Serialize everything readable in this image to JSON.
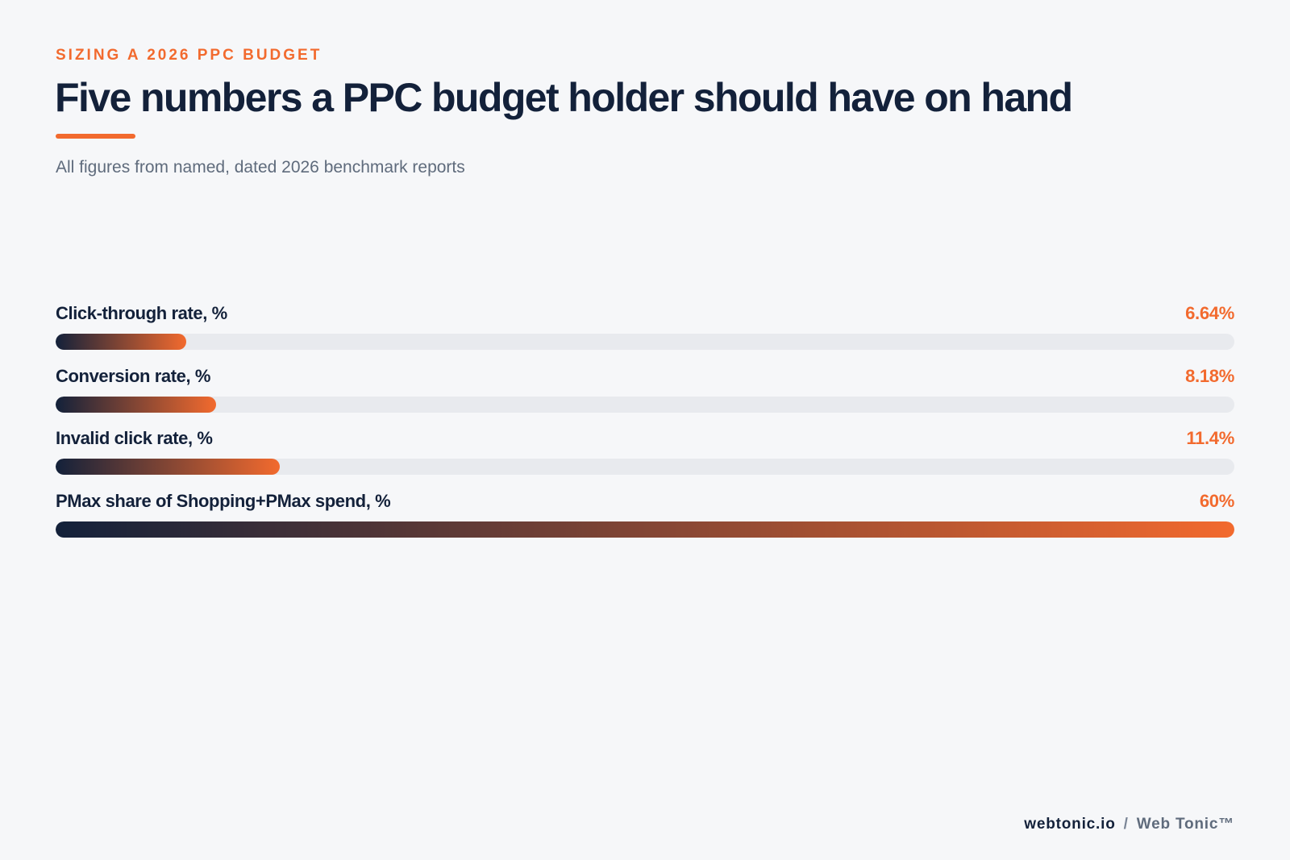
{
  "header": {
    "eyebrow": "SIZING A 2026 PPC BUDGET",
    "title": "Five numbers a PPC budget holder should have on hand",
    "subtitle": "All figures from named, dated 2026 benchmark reports"
  },
  "footer": {
    "site": "webtonic.io",
    "separator": "/",
    "brand": "Web Tonic™"
  },
  "colors": {
    "accent": "#f26a2e",
    "navy": "#13213a",
    "track": "#e8eaee",
    "background": "#f6f7f9"
  },
  "chart_data": {
    "type": "bar",
    "orientation": "horizontal",
    "xlim": [
      0,
      60
    ],
    "grid": false,
    "categories": [
      "Click-through rate, %",
      "Conversion rate, %",
      "Invalid click rate, %",
      "PMax share of Shopping+PMax spend, %"
    ],
    "values": [
      6.64,
      8.18,
      11.4,
      60
    ],
    "value_labels": [
      "6.64%",
      "8.18%",
      "11.4%",
      "60%"
    ]
  }
}
